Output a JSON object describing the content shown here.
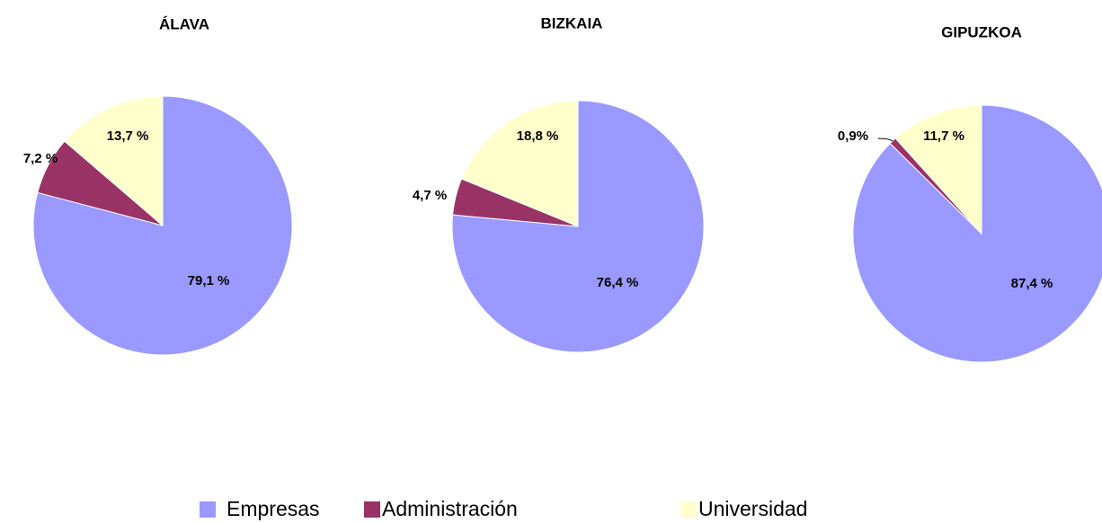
{
  "chart_data": [
    {
      "type": "pie",
      "title": "ÁLAVA",
      "categories": [
        "Empresas",
        "Administración",
        "Universidad"
      ],
      "values": [
        79.1,
        7.2,
        13.7
      ],
      "value_labels": [
        "79,1 %",
        "7,2 %",
        "13,7 %"
      ],
      "colors": [
        "#9999ff",
        "#993366",
        "#ffffcc"
      ]
    },
    {
      "type": "pie",
      "title": "BIZKAIA",
      "categories": [
        "Empresas",
        "Administración",
        "Universidad"
      ],
      "values": [
        76.4,
        4.7,
        18.8
      ],
      "value_labels": [
        "76,4 %",
        "4,7 %",
        "18,8 %"
      ],
      "colors": [
        "#9999ff",
        "#993366",
        "#ffffcc"
      ]
    },
    {
      "type": "pie",
      "title": "GIPUZKOA",
      "categories": [
        "Empresas",
        "Administración",
        "Universidad"
      ],
      "values": [
        87.4,
        0.9,
        11.7
      ],
      "value_labels": [
        "87,4 %",
        "0,9%",
        "11,7 %"
      ],
      "colors": [
        "#9999ff",
        "#993366",
        "#ffffcc"
      ]
    }
  ]
}
